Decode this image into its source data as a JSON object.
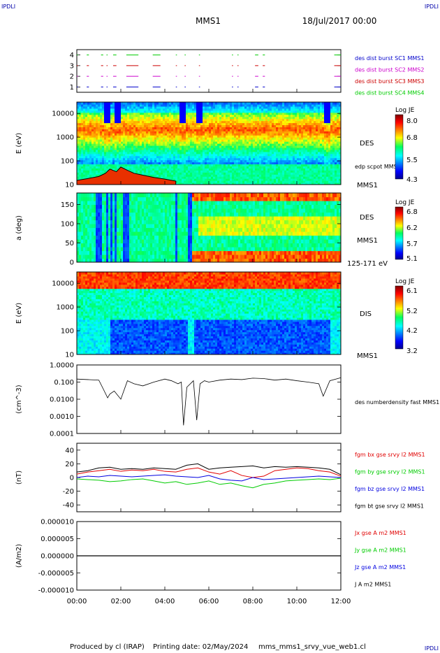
{
  "header": {
    "corner_left": "IPDLI",
    "corner_right": "IPDLI",
    "corner_bottom_right": "IPDLI",
    "spacecraft": "MMS1",
    "date": "18/Jul/2017 00:00"
  },
  "footer": {
    "produced_by": "Produced by cl (IRAP)",
    "printing_date": "Printing date: 02/May/2024",
    "file": "mms_mms1_srvy_vue_web1.cl"
  },
  "colors": {
    "mms1": "#0000cc",
    "mms2": "#cc00cc",
    "mms3": "#cc0000",
    "mms4": "#00cc00",
    "red": "#e00000",
    "green": "#00cc00",
    "blue": "#0000e0",
    "black": "#000000"
  },
  "chart_data": [
    {
      "type": "timeline",
      "ylim": [
        0.5,
        4.5
      ],
      "ticks": [
        "1",
        "2",
        "3",
        "4"
      ],
      "legend": [
        {
          "label": "des dist burst SC1 MMS1",
          "color": "#0000cc"
        },
        {
          "label": "des dist burst SC2 MMS2",
          "color": "#cc00cc"
        },
        {
          "label": "des dist burst SC3 MMS3",
          "color": "#cc0000"
        },
        {
          "label": "des dist burst SC4 MMS4",
          "color": "#00cc00"
        }
      ],
      "segments_hours": [
        [
          0.0,
          0.05
        ],
        [
          0.45,
          0.55
        ],
        [
          1.1,
          1.2
        ],
        [
          1.35,
          1.4
        ],
        [
          1.65,
          1.8
        ],
        [
          2.25,
          2.8
        ],
        [
          3.45,
          3.8
        ],
        [
          4.5,
          4.55
        ],
        [
          4.9,
          4.95
        ],
        [
          5.55,
          5.6
        ],
        [
          7.05,
          7.1
        ],
        [
          7.3,
          7.35
        ],
        [
          8.1,
          8.25
        ],
        [
          8.45,
          8.55
        ],
        [
          11.7,
          12.0
        ]
      ]
    },
    {
      "type": "heatmap",
      "ylabel": "E (eV)",
      "yscale": "log",
      "ylim": [
        10,
        30000
      ],
      "yticks": [
        "10",
        "100",
        "1000",
        "10000"
      ],
      "label": "DES",
      "side_labels": [
        "edp scpot MMS1",
        "MMS1"
      ],
      "colorbar": {
        "title": "Log JE",
        "min": 4.3,
        "max": 8.1,
        "ticks": [
          "8.0",
          "6.8",
          "5.5",
          "4.3"
        ]
      },
      "scpot_hours": [
        0.0,
        0.5,
        1.0,
        1.3,
        1.5,
        1.8,
        2.0,
        2.3,
        2.6,
        3.0,
        3.5,
        4.0,
        4.5
      ],
      "scpot_ev": [
        15,
        18,
        22,
        30,
        45,
        35,
        55,
        40,
        30,
        25,
        20,
        17,
        14
      ]
    },
    {
      "type": "heatmap",
      "ylabel": "a (deg)",
      "ylim": [
        0,
        180
      ],
      "yticks": [
        "0",
        "50",
        "100",
        "150"
      ],
      "label": "DES",
      "side_labels": [
        "MMS1",
        "125-171 eV"
      ],
      "colorbar": {
        "title": "Log JE",
        "min": 5.1,
        "max": 6.8,
        "ticks": [
          "6.8",
          "6.2",
          "5.7",
          "5.1"
        ]
      }
    },
    {
      "type": "heatmap",
      "ylabel": "E (eV)",
      "yscale": "log",
      "ylim": [
        10,
        30000
      ],
      "yticks": [
        "10",
        "100",
        "1000",
        "10000"
      ],
      "label": "DIS",
      "side_labels": [
        "MMS1"
      ],
      "colorbar": {
        "title": "Log JE",
        "min": 3.2,
        "max": 6.1,
        "ticks": [
          "6.1",
          "5.2",
          "4.2",
          "3.2"
        ]
      }
    },
    {
      "type": "line",
      "ylabel": "(cm^-3)",
      "yscale": "log",
      "ylim": [
        0.0001,
        1.0
      ],
      "yticks": [
        "0.0001",
        "0.0010",
        "0.0100",
        "0.100",
        "1.0000"
      ],
      "series": [
        {
          "name": "des numberdensity fast MMS1",
          "color": "#000000"
        }
      ],
      "x_hours": [
        0.0,
        0.5,
        1.0,
        1.2,
        1.4,
        1.5,
        1.7,
        2.0,
        2.3,
        2.6,
        3.0,
        3.5,
        4.0,
        4.3,
        4.6,
        4.75,
        4.85,
        5.0,
        5.3,
        5.45,
        5.6,
        5.8,
        6.0,
        6.5,
        7.0,
        7.5,
        8.0,
        8.5,
        9.0,
        9.5,
        10.0,
        10.5,
        11.0,
        11.2,
        11.5,
        12.0
      ],
      "y_values": [
        0.15,
        0.14,
        0.13,
        0.04,
        0.012,
        0.02,
        0.03,
        0.01,
        0.12,
        0.08,
        0.06,
        0.1,
        0.15,
        0.12,
        0.08,
        0.1,
        0.0003,
        0.05,
        0.12,
        0.0006,
        0.08,
        0.12,
        0.1,
        0.13,
        0.15,
        0.14,
        0.17,
        0.16,
        0.13,
        0.15,
        0.12,
        0.1,
        0.08,
        0.015,
        0.12,
        0.18
      ]
    },
    {
      "type": "line",
      "ylabel": "(nT)",
      "ylim": [
        -50,
        50
      ],
      "yticks": [
        "-40",
        "-20",
        "0",
        "20",
        "40"
      ],
      "x_hours": [
        0.0,
        0.5,
        1.0,
        1.5,
        2.0,
        2.5,
        3.0,
        3.5,
        4.0,
        4.5,
        5.0,
        5.5,
        6.0,
        6.5,
        7.0,
        7.5,
        8.0,
        8.5,
        9.0,
        9.5,
        10.0,
        10.5,
        11.0,
        11.5,
        12.0
      ],
      "series": [
        {
          "name": "fgm bx gse srvy l2 MMS1",
          "color": "#e00000",
          "values": [
            5,
            8,
            10,
            12,
            9,
            11,
            10,
            12,
            9,
            8,
            12,
            14,
            8,
            5,
            10,
            3,
            0,
            2,
            10,
            12,
            14,
            13,
            10,
            8,
            2
          ]
        },
        {
          "name": "fgm by gse srvy l2 MMS1",
          "color": "#00cc00",
          "values": [
            -2,
            -3,
            -4,
            -6,
            -5,
            -3,
            -2,
            -5,
            -8,
            -6,
            -10,
            -8,
            -5,
            -10,
            -8,
            -12,
            -15,
            -10,
            -8,
            -5,
            -4,
            -3,
            -2,
            -3,
            -1
          ]
        },
        {
          "name": "fgm bz gse srvy l2 MMS1",
          "color": "#0000e0",
          "values": [
            0,
            2,
            1,
            3,
            2,
            1,
            2,
            3,
            4,
            2,
            1,
            0,
            3,
            -2,
            -4,
            -5,
            0,
            -3,
            -2,
            -1,
            0,
            1,
            2,
            1,
            0
          ]
        },
        {
          "name": "fgm bt gse srvy l2 MMS1",
          "color": "#000000",
          "values": [
            8,
            10,
            14,
            15,
            12,
            13,
            12,
            14,
            13,
            12,
            18,
            20,
            12,
            14,
            15,
            16,
            17,
            14,
            16,
            15,
            16,
            15,
            14,
            12,
            4
          ]
        }
      ]
    },
    {
      "type": "line",
      "ylabel": "(A/m2)",
      "ylim": [
        -1e-05,
        1e-05
      ],
      "yticks": [
        "-0.000010",
        "-0.000005",
        "0.000000",
        "0.000005",
        "0.000010"
      ],
      "series": [
        {
          "name": "Jx gse A m2 MMS1",
          "color": "#e00000"
        },
        {
          "name": "Jy gse A m2 MMS1",
          "color": "#00cc00"
        },
        {
          "name": "Jz gse A m2 MMS1",
          "color": "#0000e0"
        },
        {
          "name": "J A m2 MMS1",
          "color": "#000000"
        }
      ],
      "x_hours": [
        0,
        12
      ],
      "y_values": [
        0,
        0
      ]
    }
  ],
  "x_axis": {
    "range_hours": [
      0,
      12
    ],
    "ticks_hours": [
      0,
      2,
      4,
      6,
      8,
      10,
      12
    ],
    "tick_labels": [
      "00:00",
      "02:00",
      "04:00",
      "06:00",
      "08:00",
      "10:00",
      "12:00"
    ]
  }
}
